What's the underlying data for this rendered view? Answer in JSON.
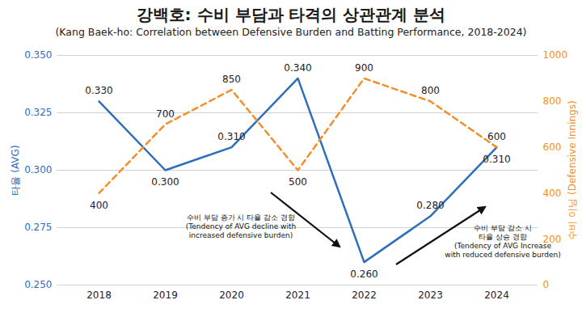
{
  "chart_data": {
    "type": "line",
    "title": "강백호: 수비 부담과 타격의 상관관계 분석",
    "subtitle": "(Kang Baek-ho: Correlation between Defensive Burden and Batting Performance, 2018-2024)",
    "categories": [
      "2018",
      "2019",
      "2020",
      "2021",
      "2022",
      "2023",
      "2024"
    ],
    "ylim": [
      0.25,
      0.35
    ],
    "yticks": [
      {
        "value": 0.25,
        "label": "0.250"
      },
      {
        "value": 0.275,
        "label": "0.275"
      },
      {
        "value": 0.3,
        "label": "0.300"
      },
      {
        "value": 0.325,
        "label": "0.325"
      },
      {
        "value": 0.35,
        "label": "0.350"
      }
    ],
    "y2lim": [
      0,
      1000
    ],
    "y2ticks": [
      0,
      200,
      400,
      600,
      800,
      1000
    ],
    "grid": true,
    "data_labels": true,
    "series": [
      {
        "name": "타율 (AVG)",
        "color": "#2f6eba",
        "line_style": "solid",
        "values": [
          0.33,
          0.3,
          0.31,
          0.34,
          0.26,
          0.28,
          0.31
        ],
        "value_labels": [
          "0.330",
          "0.300",
          "0.310",
          "0.340",
          "0.260",
          "0.280",
          "0.310"
        ]
      },
      {
        "name": "수비 이닝 (Defensive Innings)",
        "color": "#f28e2b",
        "line_style": "dashed",
        "axis": "y2",
        "values": [
          400,
          700,
          850,
          500,
          900,
          800,
          600
        ]
      }
    ],
    "annotations": [
      "수비 부담 증가 시 타율 감소 경향\n(Tendency of AVG decline with\nincreased defensive burden)",
      "수비 부담 감소 시\n타율 상승 경향\n(Tendency of AVG Increase\nwith reduced defensive burden)"
    ]
  }
}
